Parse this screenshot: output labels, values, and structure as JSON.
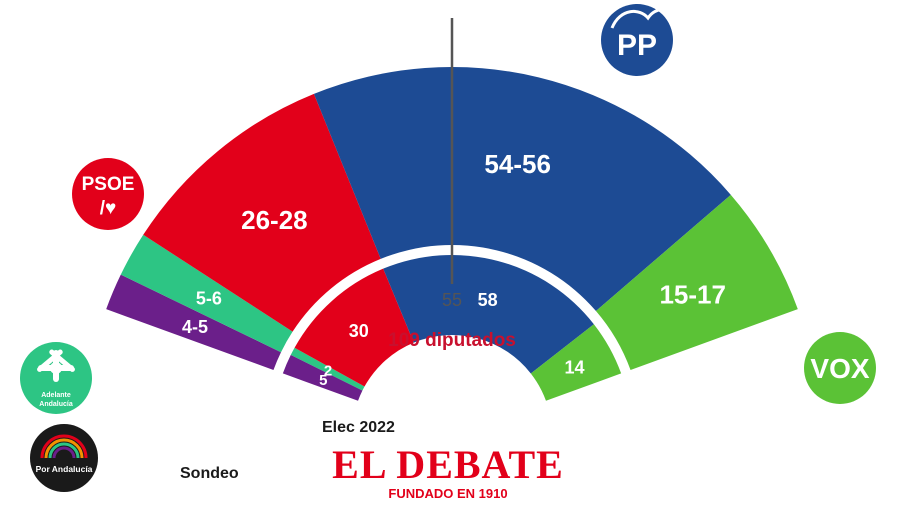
{
  "chart_data": {
    "type": "parliament-donut",
    "total_label": "109 diputados",
    "majority": "55",
    "outer_ring_label": "Sondeo",
    "inner_ring_label": "Elec 2022",
    "outer_ring": [
      {
        "party": "Por Andalucía",
        "value": 4.5,
        "label": "4-5",
        "color": "#6b1f8a"
      },
      {
        "party": "Adelante Andalucía",
        "value": 5.5,
        "label": "5-6",
        "color": "#2dc584"
      },
      {
        "party": "PSOE",
        "value": 27,
        "label": "26-28",
        "color": "#e2001a"
      },
      {
        "party": "PP",
        "value": 55,
        "label": "54-56",
        "color": "#1d4b94"
      },
      {
        "party": "VOX",
        "value": 16,
        "label": "15-17",
        "color": "#5bc236"
      }
    ],
    "inner_ring": [
      {
        "party": "Por Andalucía",
        "value": 5,
        "label": "5",
        "color": "#6b1f8a"
      },
      {
        "party": "Adelante Andalucía",
        "value": 2,
        "label": "2",
        "color": "#2dc584"
      },
      {
        "party": "PSOE",
        "value": 30,
        "label": "30",
        "color": "#e2001a"
      },
      {
        "party": "PP",
        "value": 58,
        "label": "58",
        "color": "#1d4b94"
      },
      {
        "party": "VOX",
        "value": 14,
        "label": "14",
        "color": "#5bc236"
      }
    ]
  },
  "logos": {
    "pp": {
      "text": "PP",
      "color": "#1d4b94"
    },
    "psoe": {
      "line1": "PSOE",
      "line2": "/♥",
      "color": "#e2001a"
    },
    "vox": {
      "text": "VOX",
      "color": "#5bc236"
    },
    "adelante": {
      "line1": "Adelante",
      "line2": "Andalucía",
      "color": "#2dc584"
    },
    "porandalucia": {
      "text": "Por Andalucía",
      "color": "#1a1a1a"
    }
  },
  "brand": {
    "name": "EL DEBATE",
    "tagline": "FUNDADO EN 1910",
    "color": "#e2001a"
  },
  "colors": {
    "total_label": "#c8102e",
    "majority_line": "#555555"
  }
}
